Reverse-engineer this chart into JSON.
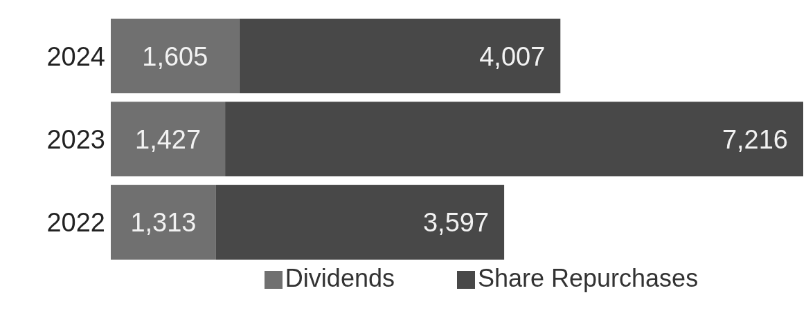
{
  "chart_data": {
    "type": "bar",
    "orientation": "horizontal",
    "stacked": true,
    "legend": "bottom",
    "grid": false,
    "categories": [
      "2024",
      "2023",
      "2022"
    ],
    "series": [
      {
        "name": "Dividends",
        "color": "#707070",
        "values": [
          1605,
          1427,
          1313
        ],
        "value_labels": [
          "1,605",
          "1,427",
          "1,313"
        ]
      },
      {
        "name": "Share Repurchases",
        "color": "#484848",
        "values": [
          4007,
          7216,
          3597
        ],
        "value_labels": [
          "4,007",
          "7,216",
          "3,597"
        ]
      }
    ]
  }
}
